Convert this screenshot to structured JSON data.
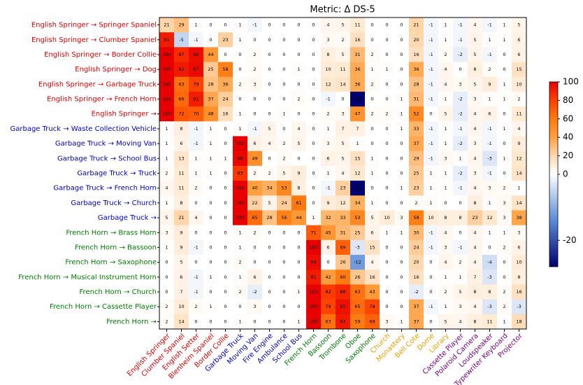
{
  "chart_data": {
    "type": "heatmap",
    "title": "Metric: Δ DS-5",
    "rows": [
      "English Springer → Springer Spaniel",
      "English Springer → Clumber Spaniel",
      "English Springer → Border Collie",
      "English Springer → Dog",
      "English Springer → Garbage Truck",
      "English Springer → French Horn",
      "English Springer →",
      "Garbage Truck → Waste Collection Vehicle",
      "Garbage Truck → Moving Van",
      "Garbage Truck → School Bus",
      "Garbage Truck → Truck",
      "Garbage Truck → French Horn",
      "Garbage Truck → Church",
      "Garbage Truck →",
      "French Horn → Brass Horn",
      "French Horn → Bassoon",
      "French Horn → Saxophone",
      "French Horn → Musical Instrument Horn",
      "French Horn → Church",
      "French Horn → Cassette Player",
      "French Horn →"
    ],
    "columns": [
      "English Springer",
      "Clumber Spaniel",
      "English Setter",
      "Blenheim Spaniel",
      "Border Collie",
      "Garbage Truck",
      "Moving Van",
      "Fire Engine",
      "Ambulance",
      "School Bus",
      "French Horn",
      "Bassoon",
      "Trombone",
      "Oboe",
      "Saxophone",
      "Church",
      "Monastery",
      "Bell Cote",
      "Dome",
      "Library",
      "Cassette Player",
      "Polaroid Camera",
      "Loudspeaker",
      "Typewriter Keyboard",
      "Projector"
    ],
    "row_colors": [
      "#e00000",
      "#e00000",
      "#e00000",
      "#e00000",
      "#e00000",
      "#e00000",
      "#e00000",
      "#0000cc",
      "#0000cc",
      "#0000cc",
      "#0000cc",
      "#0000cc",
      "#0000cc",
      "#0000cc",
      "#008000",
      "#008000",
      "#008000",
      "#008000",
      "#008000",
      "#008000",
      "#008000"
    ],
    "column_colors": [
      "#e00000",
      "#e00000",
      "#e00000",
      "#e00000",
      "#e00000",
      "#0000cc",
      "#0000cc",
      "#0000cc",
      "#0000cc",
      "#0000cc",
      "#008000",
      "#008000",
      "#008000",
      "#008000",
      "#008000",
      "#f0a000",
      "#f0a000",
      "#f0a000",
      "#f0a000",
      "#f0a000",
      "#800080",
      "#800080",
      "#800080",
      "#800080",
      "#800080"
    ],
    "values": [
      [
        21,
        29,
        1,
        0,
        0,
        1,
        -1,
        0,
        0,
        0,
        0,
        4,
        5,
        11,
        0,
        0,
        0,
        21,
        -1,
        1,
        -1,
        4,
        -1,
        1,
        5
      ],
      [
        91,
        -5,
        -1,
        0,
        23,
        1,
        0,
        0,
        0,
        0,
        0,
        3,
        2,
        16,
        0,
        0,
        0,
        20,
        -1,
        1,
        -1,
        5,
        1,
        1,
        6
      ],
      [
        100,
        87,
        96,
        44,
        0,
        0,
        2,
        0,
        0,
        0,
        0,
        8,
        5,
        31,
        2,
        0,
        0,
        16,
        -1,
        2,
        -2,
        5,
        -1,
        0,
        6
      ],
      [
        100,
        92,
        97,
        25,
        58,
        0,
        2,
        0,
        0,
        1,
        0,
        10,
        11,
        36,
        1,
        1,
        0,
        36,
        -1,
        4,
        0,
        8,
        2,
        0,
        15
      ],
      [
        100,
        63,
        79,
        28,
        36,
        2,
        3,
        0,
        0,
        0,
        0,
        12,
        14,
        36,
        2,
        0,
        0,
        28,
        -1,
        4,
        3,
        5,
        9,
        1,
        10
      ],
      [
        100,
        66,
        91,
        37,
        24,
        0,
        0,
        0,
        0,
        2,
        0,
        -1,
        0,
        -28,
        0,
        0,
        1,
        31,
        -1,
        1,
        -2,
        3,
        1,
        1,
        2
      ],
      [
        100,
        72,
        70,
        48,
        16,
        1,
        0,
        0,
        1,
        0,
        0,
        2,
        3,
        47,
        2,
        2,
        1,
        52,
        0,
        5,
        -2,
        4,
        6,
        0,
        11
      ],
      [
        1,
        8,
        -1,
        1,
        0,
        1,
        -1,
        5,
        0,
        4,
        0,
        1,
        7,
        7,
        0,
        0,
        1,
        33,
        -1,
        1,
        -1,
        4,
        -1,
        1,
        4
      ],
      [
        1,
        6,
        -1,
        1,
        0,
        100,
        6,
        4,
        2,
        5,
        0,
        3,
        5,
        1,
        0,
        0,
        0,
        37,
        -1,
        1,
        -2,
        3,
        -1,
        0,
        9
      ],
      [
        1,
        13,
        1,
        1,
        1,
        98,
        49,
        0,
        2,
        0,
        0,
        6,
        5,
        15,
        1,
        0,
        0,
        29,
        -1,
        3,
        1,
        4,
        -3,
        1,
        12
      ],
      [
        2,
        11,
        1,
        1,
        0,
        83,
        2,
        2,
        5,
        9,
        0,
        1,
        4,
        12,
        1,
        0,
        0,
        25,
        1,
        1,
        -2,
        3,
        -1,
        0,
        14
      ],
      [
        4,
        11,
        2,
        0,
        0,
        100,
        40,
        34,
        53,
        8,
        0,
        -1,
        23,
        -31,
        0,
        0,
        1,
        23,
        1,
        1,
        -1,
        4,
        3,
        2,
        1
      ],
      [
        1,
        8,
        0,
        0,
        0,
        100,
        22,
        5,
        24,
        61,
        0,
        9,
        12,
        34,
        1,
        0,
        0,
        2,
        1,
        0,
        0,
        8,
        1,
        3,
        14
      ],
      [
        5,
        21,
        4,
        0,
        0,
        100,
        65,
        28,
        56,
        44,
        1,
        32,
        33,
        53,
        5,
        10,
        3,
        58,
        10,
        8,
        8,
        23,
        12,
        3,
        38
      ],
      [
        3,
        9,
        0,
        0,
        0,
        1,
        2,
        0,
        0,
        0,
        71,
        45,
        31,
        25,
        6,
        1,
        1,
        30,
        -1,
        4,
        0,
        4,
        1,
        1,
        3
      ],
      [
        1,
        9,
        -1,
        0,
        0,
        1,
        0,
        0,
        0,
        0,
        100,
        6,
        69,
        -3,
        15,
        0,
        0,
        24,
        -1,
        3,
        -1,
        4,
        0,
        2,
        6
      ],
      [
        0,
        5,
        0,
        0,
        0,
        2,
        0,
        0,
        0,
        0,
        96,
        0,
        26,
        -12,
        4,
        0,
        0,
        20,
        0,
        4,
        2,
        4,
        -4,
        0,
        10
      ],
      [
        0,
        6,
        -1,
        1,
        0,
        1,
        6,
        0,
        0,
        0,
        91,
        42,
        60,
        26,
        16,
        0,
        0,
        16,
        0,
        1,
        1,
        7,
        -3,
        0,
        8
      ],
      [
        0,
        7,
        -1,
        0,
        0,
        2,
        -2,
        0,
        0,
        1,
        100,
        82,
        88,
        63,
        43,
        0,
        0,
        -2,
        0,
        2,
        5,
        8,
        8,
        2,
        16
      ],
      [
        2,
        10,
        2,
        1,
        0,
        0,
        3,
        0,
        0,
        0,
        100,
        79,
        95,
        65,
        78,
        0,
        0,
        37,
        -1,
        1,
        3,
        4,
        -3,
        2,
        -3
      ],
      [
        2,
        14,
        0,
        0,
        0,
        1,
        0,
        0,
        0,
        1,
        100,
        63,
        92,
        59,
        69,
        3,
        1,
        37,
        0,
        5,
        4,
        8,
        11,
        1,
        18
      ]
    ],
    "clim": [
      -28,
      100
    ],
    "colormap": [
      [
        -28,
        "#00006e"
      ],
      [
        -14,
        "#5a8ad8"
      ],
      [
        0,
        "#ffffff"
      ],
      [
        20,
        "#ffd8b0"
      ],
      [
        40,
        "#ffa040"
      ],
      [
        60,
        "#ff7a10"
      ],
      [
        80,
        "#ff4000"
      ],
      [
        100,
        "#e80000"
      ]
    ],
    "colorbar_ticks": [
      100,
      80,
      60,
      40,
      20,
      0,
      -20
    ]
  }
}
